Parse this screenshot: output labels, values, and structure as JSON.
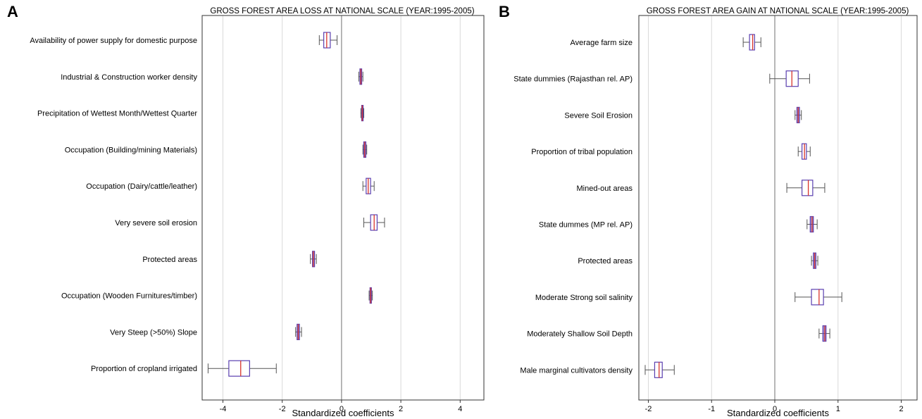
{
  "chart_data": [
    {
      "type": "boxplot",
      "panel_label": "A",
      "title": "GROSS FOREST AREA LOSS AT NATIONAL SCALE (YEAR:1995-2005)",
      "xlabel": "Standardized coefficients",
      "ylabel": "",
      "xlim": [
        -4.7,
        4.8
      ],
      "xticks": [
        -4,
        -2,
        0,
        2,
        4
      ],
      "xtick_labels": [
        "-4",
        "-2",
        "0",
        "2",
        "4"
      ],
      "grid": true,
      "colors": {
        "box": "#5a3fb0",
        "median": "#d9342b",
        "whisker": "#555555",
        "grid": "#d9d9d9",
        "zero_line": "#888888"
      },
      "categories": [
        "Availability of power supply for domestic purpose",
        "Industrial & Construction worker density",
        "Precipitation of Wettest Month/Wettest Quarter",
        "Occupation (Building/mining Materials)",
        "Occupation (Dairy/cattle/leather)",
        "Very severe soil erosion",
        "Protected areas",
        "Occupation (Wooden Furnitures/timber)",
        "Very Steep (>50%) Slope",
        "Proportion of cropland irrigated"
      ],
      "boxes": [
        {
          "min": -0.75,
          "q1": -0.6,
          "median": -0.5,
          "q3": -0.38,
          "max": -0.15
        },
        {
          "min": 0.58,
          "q1": 0.62,
          "median": 0.65,
          "q3": 0.68,
          "max": 0.72
        },
        {
          "min": 0.65,
          "q1": 0.68,
          "median": 0.7,
          "q3": 0.72,
          "max": 0.75
        },
        {
          "min": 0.72,
          "q1": 0.75,
          "median": 0.78,
          "q3": 0.82,
          "max": 0.85
        },
        {
          "min": 0.72,
          "q1": 0.83,
          "median": 0.9,
          "q3": 0.98,
          "max": 1.1
        },
        {
          "min": 0.75,
          "q1": 0.98,
          "median": 1.1,
          "q3": 1.2,
          "max": 1.45
        },
        {
          "min": -1.05,
          "q1": -0.98,
          "median": -0.95,
          "q3": -0.91,
          "max": -0.85
        },
        {
          "min": 0.93,
          "q1": 0.96,
          "median": 0.98,
          "q3": 1.0,
          "max": 1.04
        },
        {
          "min": -1.55,
          "q1": -1.5,
          "median": -1.46,
          "q3": -1.42,
          "max": -1.35
        },
        {
          "min": -4.5,
          "q1": -3.8,
          "median": -3.4,
          "q3": -3.1,
          "max": -2.2
        }
      ]
    },
    {
      "type": "boxplot",
      "panel_label": "B",
      "title": "GROSS FOREST AREA GAIN AT NATIONAL SCALE (YEAR:1995-2005)",
      "xlabel": "Standardized coefficients",
      "ylabel": "",
      "xlim": [
        -2.15,
        2.25
      ],
      "xticks": [
        -2,
        -1,
        0,
        1,
        2
      ],
      "xtick_labels": [
        "-2",
        "-1",
        "0",
        "1",
        "2"
      ],
      "grid": true,
      "colors": {
        "box": "#5a3fb0",
        "median": "#d9342b",
        "whisker": "#555555",
        "grid": "#d9d9d9",
        "zero_line": "#888888"
      },
      "categories": [
        "Average farm size",
        "State dummies (Rajasthan  rel. AP)",
        "Severe Soil Erosion",
        "Proportion of tribal population",
        "Mined-out areas",
        "State dummes (MP rel. AP)",
        "Protected areas",
        "Moderate Strong soil salinity",
        "Moderately Shallow Soil Depth",
        "Male marginal cultivators density"
      ],
      "boxes": [
        {
          "min": -0.5,
          "q1": -0.4,
          "median": -0.35,
          "q3": -0.32,
          "max": -0.22
        },
        {
          "min": -0.08,
          "q1": 0.18,
          "median": 0.27,
          "q3": 0.37,
          "max": 0.55
        },
        {
          "min": 0.32,
          "q1": 0.35,
          "median": 0.37,
          "q3": 0.39,
          "max": 0.42
        },
        {
          "min": 0.37,
          "q1": 0.43,
          "median": 0.47,
          "q3": 0.5,
          "max": 0.56
        },
        {
          "min": 0.19,
          "q1": 0.43,
          "median": 0.53,
          "q3": 0.6,
          "max": 0.79
        },
        {
          "min": 0.51,
          "q1": 0.56,
          "median": 0.59,
          "q3": 0.61,
          "max": 0.67
        },
        {
          "min": 0.58,
          "q1": 0.61,
          "median": 0.63,
          "q3": 0.65,
          "max": 0.68
        },
        {
          "min": 0.32,
          "q1": 0.58,
          "median": 0.7,
          "q3": 0.77,
          "max": 1.06
        },
        {
          "min": 0.7,
          "q1": 0.76,
          "median": 0.79,
          "q3": 0.81,
          "max": 0.87
        },
        {
          "min": -2.05,
          "q1": -1.9,
          "median": -1.83,
          "q3": -1.78,
          "max": -1.59
        }
      ]
    }
  ]
}
